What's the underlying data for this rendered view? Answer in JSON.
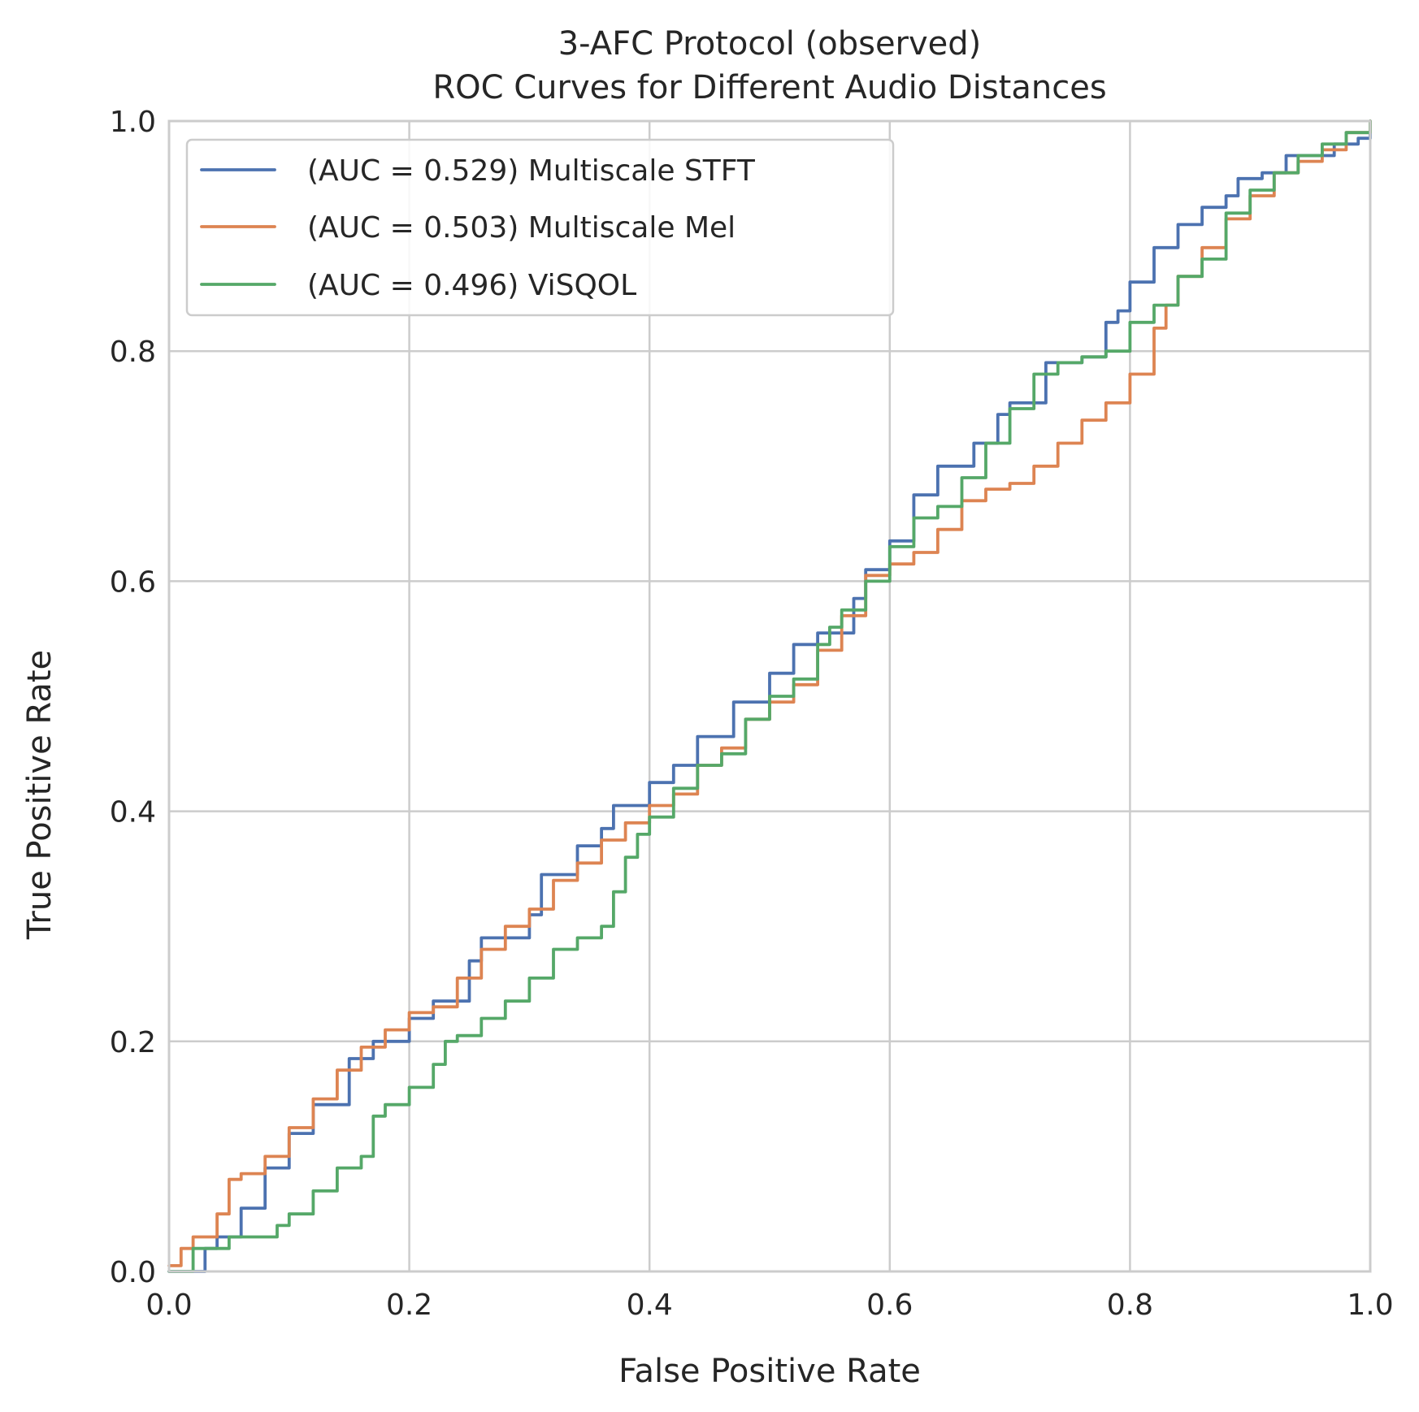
{
  "chart_data": {
    "type": "line",
    "title": [
      "3-AFC Protocol (observed)",
      "ROC Curves for Different Audio Distances"
    ],
    "xlabel": "False Positive Rate",
    "ylabel": "True Positive Rate",
    "xlim": [
      0.0,
      1.0
    ],
    "ylim": [
      0.0,
      1.0
    ],
    "xticks": [
      "0.0",
      "0.2",
      "0.4",
      "0.6",
      "0.8",
      "1.0"
    ],
    "yticks": [
      "0.0",
      "0.2",
      "0.4",
      "0.6",
      "0.8",
      "1.0"
    ],
    "grid": true,
    "legend_position": "upper-left",
    "series": [
      {
        "name": "(AUC = 0.529) Multiscale STFT",
        "color": "#4c72b0",
        "x": [
          0.0,
          0.03,
          0.04,
          0.06,
          0.08,
          0.08,
          0.1,
          0.12,
          0.15,
          0.17,
          0.2,
          0.22,
          0.25,
          0.26,
          0.3,
          0.31,
          0.34,
          0.36,
          0.37,
          0.4,
          0.42,
          0.44,
          0.47,
          0.5,
          0.52,
          0.54,
          0.57,
          0.58,
          0.6,
          0.62,
          0.64,
          0.67,
          0.69,
          0.7,
          0.73,
          0.76,
          0.78,
          0.79,
          0.8,
          0.82,
          0.84,
          0.86,
          0.88,
          0.89,
          0.91,
          0.93,
          0.97,
          0.99,
          1.0
        ],
        "y": [
          0.0,
          0.02,
          0.03,
          0.055,
          0.065,
          0.09,
          0.12,
          0.145,
          0.185,
          0.2,
          0.22,
          0.235,
          0.27,
          0.29,
          0.31,
          0.345,
          0.37,
          0.385,
          0.405,
          0.425,
          0.44,
          0.465,
          0.495,
          0.52,
          0.545,
          0.555,
          0.585,
          0.61,
          0.635,
          0.675,
          0.7,
          0.72,
          0.745,
          0.755,
          0.79,
          0.795,
          0.825,
          0.835,
          0.86,
          0.89,
          0.91,
          0.925,
          0.935,
          0.95,
          0.955,
          0.97,
          0.98,
          0.985,
          1.0
        ]
      },
      {
        "name": "(AUC = 0.503) Multiscale Mel",
        "color": "#dd8452",
        "x": [
          0.0,
          0.01,
          0.02,
          0.04,
          0.05,
          0.06,
          0.08,
          0.1,
          0.12,
          0.14,
          0.16,
          0.18,
          0.2,
          0.22,
          0.24,
          0.26,
          0.28,
          0.3,
          0.32,
          0.34,
          0.36,
          0.38,
          0.4,
          0.42,
          0.44,
          0.46,
          0.48,
          0.5,
          0.52,
          0.54,
          0.56,
          0.58,
          0.6,
          0.62,
          0.64,
          0.66,
          0.68,
          0.7,
          0.72,
          0.74,
          0.76,
          0.78,
          0.8,
          0.82,
          0.83,
          0.84,
          0.86,
          0.88,
          0.9,
          0.92,
          0.94,
          0.96,
          0.98,
          1.0
        ],
        "y": [
          0.005,
          0.02,
          0.03,
          0.05,
          0.08,
          0.085,
          0.1,
          0.125,
          0.15,
          0.175,
          0.195,
          0.21,
          0.225,
          0.23,
          0.255,
          0.28,
          0.3,
          0.315,
          0.34,
          0.355,
          0.375,
          0.39,
          0.405,
          0.415,
          0.44,
          0.455,
          0.48,
          0.495,
          0.51,
          0.54,
          0.57,
          0.605,
          0.615,
          0.625,
          0.645,
          0.67,
          0.68,
          0.685,
          0.7,
          0.72,
          0.74,
          0.755,
          0.78,
          0.82,
          0.84,
          0.865,
          0.89,
          0.915,
          0.935,
          0.955,
          0.965,
          0.975,
          0.99,
          1.0
        ]
      },
      {
        "name": "(AUC = 0.496) ViSQOL",
        "color": "#55a868",
        "x": [
          0.0,
          0.02,
          0.05,
          0.08,
          0.09,
          0.1,
          0.12,
          0.14,
          0.16,
          0.17,
          0.18,
          0.2,
          0.22,
          0.23,
          0.24,
          0.26,
          0.28,
          0.3,
          0.32,
          0.34,
          0.36,
          0.37,
          0.38,
          0.39,
          0.4,
          0.42,
          0.44,
          0.46,
          0.48,
          0.5,
          0.52,
          0.54,
          0.55,
          0.56,
          0.58,
          0.6,
          0.62,
          0.64,
          0.66,
          0.68,
          0.7,
          0.72,
          0.74,
          0.76,
          0.78,
          0.8,
          0.82,
          0.84,
          0.86,
          0.88,
          0.9,
          0.92,
          0.94,
          0.96,
          0.98,
          1.0
        ],
        "y": [
          0.0,
          0.02,
          0.03,
          0.03,
          0.04,
          0.05,
          0.07,
          0.09,
          0.1,
          0.135,
          0.145,
          0.16,
          0.18,
          0.2,
          0.205,
          0.22,
          0.235,
          0.255,
          0.28,
          0.29,
          0.3,
          0.33,
          0.36,
          0.38,
          0.395,
          0.42,
          0.44,
          0.45,
          0.48,
          0.5,
          0.515,
          0.545,
          0.56,
          0.575,
          0.6,
          0.63,
          0.655,
          0.665,
          0.69,
          0.72,
          0.75,
          0.78,
          0.79,
          0.795,
          0.8,
          0.825,
          0.84,
          0.865,
          0.88,
          0.92,
          0.94,
          0.955,
          0.97,
          0.98,
          0.99,
          1.0
        ]
      }
    ]
  }
}
